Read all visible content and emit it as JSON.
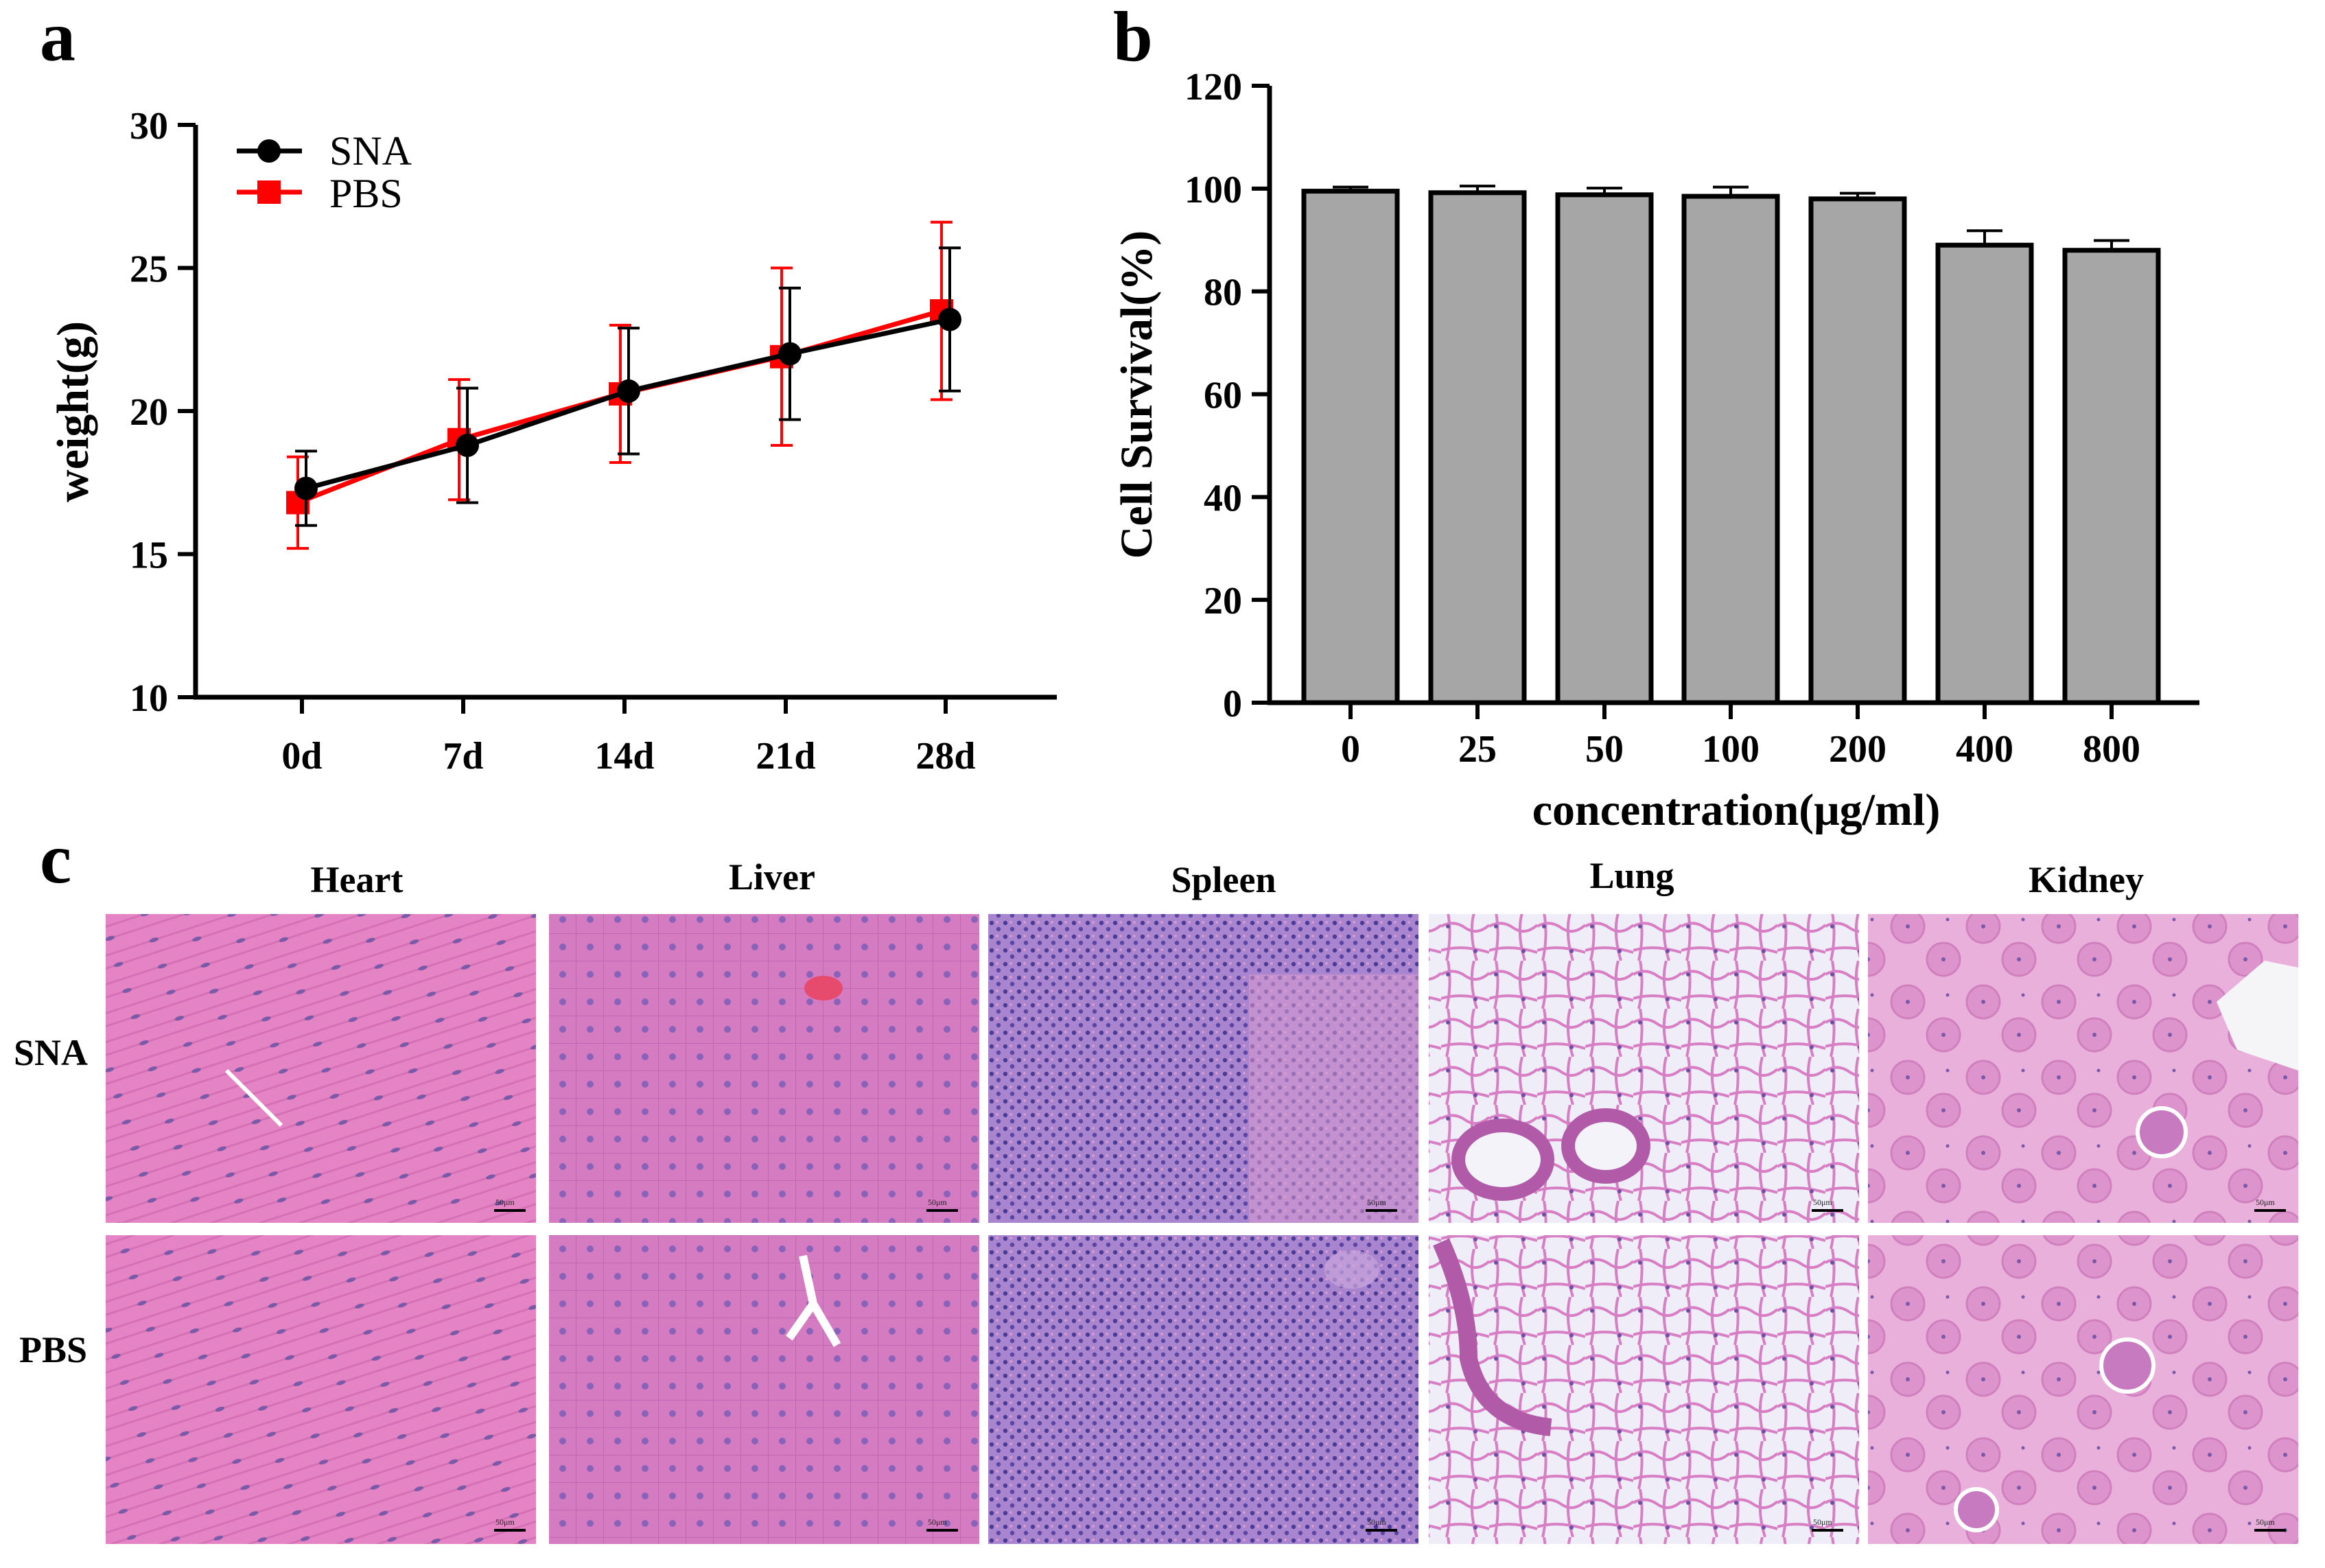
{
  "panels": {
    "a": "a",
    "b": "b",
    "c": "c"
  },
  "chart_data": [
    {
      "type": "line",
      "ylabel": "weight(g)",
      "xlabel": "",
      "categories": [
        "0d",
        "7d",
        "14d",
        "21d",
        "28d"
      ],
      "ylim": [
        10,
        30
      ],
      "yticks": [
        10,
        15,
        20,
        25,
        30
      ],
      "legend_position": "top-left",
      "series": [
        {
          "name": "SNA",
          "color": "#000000",
          "marker": "circle",
          "values": [
            17.3,
            18.8,
            20.7,
            22.0,
            23.2
          ],
          "errors": [
            1.3,
            2.0,
            2.2,
            2.3,
            2.5
          ]
        },
        {
          "name": "PBS",
          "color": "#ff0000",
          "marker": "square",
          "values": [
            16.8,
            19.0,
            20.6,
            21.9,
            23.5
          ],
          "errors": [
            1.6,
            2.1,
            2.4,
            3.1,
            3.1
          ]
        }
      ]
    },
    {
      "type": "bar",
      "ylabel": "Cell Survival(%)",
      "xlabel": "concentration(μg/ml)",
      "categories": [
        "0",
        "25",
        "50",
        "100",
        "200",
        "400",
        "800"
      ],
      "values": [
        99.5,
        99.2,
        98.8,
        98.5,
        98.0,
        89.0,
        88.0
      ],
      "errors": [
        0.8,
        1.3,
        1.3,
        1.8,
        1.1,
        2.8,
        1.9
      ],
      "ylim": [
        0,
        120
      ],
      "yticks": [
        0,
        20,
        40,
        60,
        80,
        100,
        120
      ],
      "bar_color": "#a6a6a6"
    }
  ],
  "histology": {
    "organs": [
      "Heart",
      "Liver",
      "Spleen",
      "Lung",
      "Kidney"
    ],
    "rows": [
      "SNA",
      "PBS"
    ],
    "scale_bar": "50μm"
  }
}
